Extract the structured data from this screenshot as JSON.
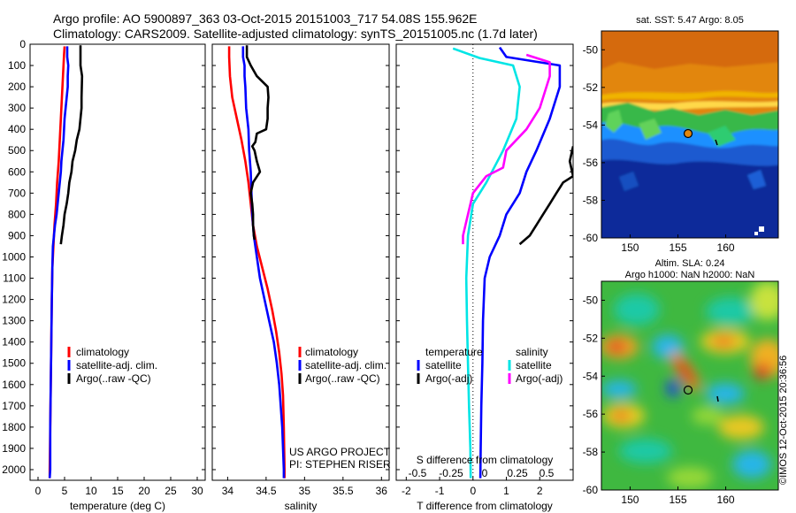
{
  "header": {
    "line1": "Argo profile: AO 5900897_363 03-Oct-2015 20151003_717 54.08S 155.962E",
    "line2": "Climatology: CARS2009. Satellite-adjusted climatology: synTS_20151005.nc (1.7d later)"
  },
  "colors": {
    "climatology": "#ff0000",
    "satellite": "#0000ff",
    "argo": "#000000",
    "sal_satellite": "#00e5e5",
    "sal_argo": "#ff00ff"
  },
  "chart_data": [
    {
      "type": "line",
      "xlabel": "temperature (deg C)",
      "ylim": [
        2050,
        0
      ],
      "xlim": [
        -1.5,
        31.5
      ],
      "xticks": [
        0,
        5,
        10,
        15,
        20,
        25,
        30
      ],
      "yticks": [
        0,
        100,
        200,
        300,
        400,
        500,
        600,
        700,
        800,
        900,
        1000,
        1100,
        1200,
        1300,
        1400,
        1500,
        1600,
        1700,
        1800,
        1900,
        2000
      ],
      "legend": [
        "climatology",
        "satellite-adj. clim.",
        "Argo(..raw -QC)"
      ],
      "series": [
        {
          "name": "climatology",
          "color": "#ff0000",
          "points": [
            [
              5.0,
              10
            ],
            [
              4.9,
              50
            ],
            [
              4.7,
              150
            ],
            [
              4.5,
              250
            ],
            [
              4.3,
              350
            ],
            [
              4.1,
              450
            ],
            [
              3.9,
              550
            ],
            [
              3.6,
              650
            ],
            [
              3.4,
              750
            ],
            [
              3.1,
              850
            ],
            [
              2.9,
              950
            ],
            [
              2.7,
              1050
            ],
            [
              2.6,
              1200
            ],
            [
              2.5,
              1400
            ],
            [
              2.4,
              1600
            ],
            [
              2.3,
              1800
            ],
            [
              2.2,
              2000
            ],
            [
              2.2,
              2040
            ]
          ]
        },
        {
          "name": "satellite-adj. clim.",
          "color": "#0000ff",
          "points": [
            [
              5.5,
              10
            ],
            [
              5.5,
              60
            ],
            [
              5.7,
              100
            ],
            [
              5.6,
              150
            ],
            [
              5.6,
              200
            ],
            [
              5.4,
              250
            ],
            [
              5.2,
              300
            ],
            [
              5.0,
              350
            ],
            [
              4.9,
              400
            ],
            [
              4.8,
              450
            ],
            [
              4.6,
              500
            ],
            [
              4.4,
              550
            ],
            [
              4.3,
              600
            ],
            [
              4.1,
              650
            ],
            [
              3.9,
              700
            ],
            [
              3.7,
              750
            ],
            [
              3.5,
              800
            ],
            [
              3.2,
              850
            ],
            [
              3.0,
              900
            ],
            [
              2.8,
              950
            ],
            [
              2.7,
              1050
            ],
            [
              2.6,
              1200
            ],
            [
              2.5,
              1400
            ],
            [
              2.4,
              1600
            ],
            [
              2.3,
              1800
            ],
            [
              2.3,
              2000
            ],
            [
              2.2,
              2040
            ]
          ]
        },
        {
          "name": "Argo(..raw -QC)",
          "color": "#000000",
          "points": [
            [
              8.0,
              5
            ],
            [
              8.0,
              100
            ],
            [
              8.3,
              150
            ],
            [
              8.2,
              250
            ],
            [
              8.2,
              300
            ],
            [
              7.8,
              400
            ],
            [
              7.3,
              450
            ],
            [
              7.0,
              500
            ],
            [
              6.5,
              550
            ],
            [
              6.3,
              600
            ],
            [
              5.9,
              650
            ],
            [
              5.7,
              700
            ],
            [
              5.4,
              750
            ],
            [
              5.0,
              800
            ],
            [
              4.8,
              850
            ],
            [
              4.5,
              900
            ],
            [
              4.3,
              940
            ]
          ]
        }
      ]
    },
    {
      "type": "line",
      "xlabel": "salinity",
      "ylim": [
        2050,
        0
      ],
      "xlim": [
        33.8,
        36.1
      ],
      "xticks": [
        34,
        34.5,
        35,
        35.5,
        36
      ],
      "legend": [
        "climatology",
        "satellite-adj. clim.",
        "Argo(..raw -QC)"
      ],
      "annotation": [
        "US ARGO PROJECT",
        "PI: STEPHEN RISER"
      ],
      "series": [
        {
          "name": "climatology",
          "color": "#ff0000",
          "points": [
            [
              34.02,
              10
            ],
            [
              34.02,
              60
            ],
            [
              34.03,
              150
            ],
            [
              34.06,
              250
            ],
            [
              34.12,
              350
            ],
            [
              34.18,
              450
            ],
            [
              34.23,
              550
            ],
            [
              34.27,
              650
            ],
            [
              34.3,
              750
            ],
            [
              34.33,
              850
            ],
            [
              34.38,
              950
            ],
            [
              34.45,
              1050
            ],
            [
              34.52,
              1150
            ],
            [
              34.58,
              1250
            ],
            [
              34.63,
              1350
            ],
            [
              34.67,
              1450
            ],
            [
              34.7,
              1550
            ],
            [
              34.72,
              1650
            ],
            [
              34.73,
              1800
            ],
            [
              34.74,
              2000
            ],
            [
              34.74,
              2040
            ]
          ]
        },
        {
          "name": "satellite-adj. clim.",
          "color": "#0000ff",
          "points": [
            [
              34.2,
              10
            ],
            [
              34.2,
              60
            ],
            [
              34.22,
              100
            ],
            [
              34.22,
              150
            ],
            [
              34.23,
              200
            ],
            [
              34.24,
              300
            ],
            [
              34.27,
              400
            ],
            [
              34.28,
              500
            ],
            [
              34.3,
              600
            ],
            [
              34.31,
              700
            ],
            [
              34.32,
              800
            ],
            [
              34.34,
              900
            ],
            [
              34.38,
              1000
            ],
            [
              34.42,
              1100
            ],
            [
              34.48,
              1200
            ],
            [
              34.54,
              1300
            ],
            [
              34.6,
              1400
            ],
            [
              34.64,
              1500
            ],
            [
              34.67,
              1600
            ],
            [
              34.69,
              1700
            ],
            [
              34.71,
              1800
            ],
            [
              34.72,
              1900
            ],
            [
              34.73,
              2000
            ],
            [
              34.73,
              2040
            ]
          ]
        },
        {
          "name": "Argo(..raw -QC)",
          "color": "#000000",
          "points": [
            [
              34.25,
              5
            ],
            [
              34.25,
              60
            ],
            [
              34.3,
              100
            ],
            [
              34.38,
              150
            ],
            [
              34.52,
              200
            ],
            [
              34.53,
              250
            ],
            [
              34.52,
              300
            ],
            [
              34.52,
              350
            ],
            [
              34.5,
              400
            ],
            [
              34.38,
              420
            ],
            [
              34.36,
              460
            ],
            [
              34.32,
              480
            ],
            [
              34.35,
              500
            ],
            [
              34.38,
              550
            ],
            [
              34.42,
              600
            ],
            [
              34.33,
              650
            ],
            [
              34.3,
              700
            ],
            [
              34.32,
              750
            ],
            [
              34.33,
              800
            ],
            [
              34.33,
              850
            ],
            [
              34.34,
              900
            ],
            [
              34.35,
              920
            ]
          ]
        }
      ]
    },
    {
      "type": "line",
      "xlabel": "T difference from climatology",
      "xlim": [
        -2.3,
        3.0
      ],
      "ylim": [
        2050,
        0
      ],
      "xticks": [
        -2,
        -1,
        0,
        1,
        2
      ],
      "top_axis_label": "S difference from climatology",
      "top_ticks": [
        -0.5,
        -0.25,
        0,
        0.25,
        0.5
      ],
      "legend_groups": [
        {
          "title": "temperature",
          "items": [
            "satellite",
            "Argo(-adj)"
          ]
        },
        {
          "title": "salinity",
          "items": [
            "satellite",
            "Argo(-adj)"
          ]
        }
      ],
      "series": [
        {
          "name": "temperature satellite",
          "color": "#0000ff",
          "points": [
            [
              0.8,
              15
            ],
            [
              1.0,
              60
            ],
            [
              2.6,
              100
            ],
            [
              2.6,
              200
            ],
            [
              2.3,
              350
            ],
            [
              1.9,
              500
            ],
            [
              1.6,
              600
            ],
            [
              1.4,
              700
            ],
            [
              1.0,
              800
            ],
            [
              0.8,
              900
            ],
            [
              0.5,
              1000
            ],
            [
              0.35,
              1100
            ],
            [
              0.3,
              1300
            ],
            [
              0.28,
              1500
            ],
            [
              0.25,
              1700
            ],
            [
              0.23,
              1900
            ],
            [
              0.22,
              2040
            ]
          ]
        },
        {
          "name": "temperature Argo(-adj)",
          "color": "#000000",
          "points": [
            [
              3.0,
              480
            ],
            [
              2.9,
              550
            ],
            [
              3.0,
              620
            ],
            [
              2.7,
              650
            ],
            [
              2.5,
              700
            ],
            [
              2.3,
              750
            ],
            [
              2.1,
              800
            ],
            [
              1.9,
              850
            ],
            [
              1.7,
              900
            ],
            [
              1.4,
              940
            ]
          ]
        },
        {
          "name": "salinity satellite",
          "color": "#00e5e5",
          "points": [
            [
              -0.6,
              20
            ],
            [
              0.2,
              65
            ],
            [
              1.2,
              100
            ],
            [
              1.4,
              200
            ],
            [
              1.3,
              350
            ],
            [
              0.9,
              500
            ],
            [
              0.4,
              650
            ],
            [
              0.0,
              750
            ],
            [
              -0.15,
              900
            ],
            [
              -0.2,
              1100
            ],
            [
              -0.18,
              1300
            ],
            [
              -0.15,
              1500
            ],
            [
              -0.12,
              1700
            ],
            [
              -0.08,
              1900
            ],
            [
              -0.07,
              2040
            ]
          ]
        },
        {
          "name": "salinity Argo(-adj)",
          "color": "#ff00ff",
          "points": [
            [
              1.6,
              50
            ],
            [
              2.3,
              85
            ],
            [
              2.3,
              150
            ],
            [
              2.0,
              300
            ],
            [
              1.6,
              400
            ],
            [
              1.0,
              500
            ],
            [
              0.9,
              580
            ],
            [
              0.4,
              620
            ],
            [
              0.0,
              700
            ],
            [
              -0.15,
              800
            ],
            [
              -0.3,
              900
            ],
            [
              -0.3,
              940
            ]
          ]
        }
      ]
    }
  ],
  "sst_map": {
    "title": "sat. SST: 5.47 Argo: 8.05",
    "xticks": [
      "150",
      "155",
      "160"
    ],
    "yticks": [
      "-50",
      "-52",
      "-54",
      "-56",
      "-58",
      "-60"
    ]
  },
  "sla_map": {
    "title1": "Altim. SLA: 0.24",
    "title2": "Argo h1000: NaN h2000: NaN",
    "xticks": [
      "150",
      "155",
      "160"
    ],
    "yticks": [
      "-50",
      "-52",
      "-54",
      "-56",
      "-58",
      "-60"
    ]
  },
  "footer": {
    "credit": "©IMOS 12-Oct-2015 20:36:56"
  }
}
